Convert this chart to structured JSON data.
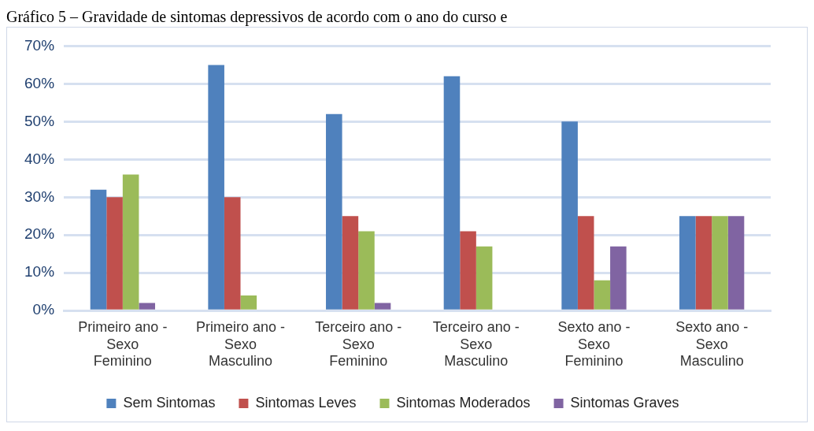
{
  "chart_data": {
    "type": "bar",
    "title": "Gráfico 5 – Gravidade de sintomas depressivos de acordo com o ano do curso e",
    "categories": [
      "Primeiro ano - Sexo Feminino",
      "Primeiro ano - Sexo Masculino",
      "Terceiro ano - Sexo Feminino",
      "Terceiro ano - Sexo Masculino",
      "Sexto ano - Sexo Feminino",
      "Sexto ano - Sexo Masculino"
    ],
    "series": [
      {
        "name": "Sem Sintomas",
        "color": "#4f81bd",
        "values": [
          32,
          65,
          52,
          62,
          50,
          25
        ]
      },
      {
        "name": "Sintomas Leves",
        "color": "#c0504d",
        "values": [
          30,
          30,
          25,
          21,
          25,
          25
        ]
      },
      {
        "name": "Sintomas Moderados",
        "color": "#9bbb59",
        "values": [
          36,
          4,
          21,
          17,
          8,
          25
        ]
      },
      {
        "name": "Sintomas Graves",
        "color": "#8064a2",
        "values": [
          2,
          0,
          2,
          0,
          17,
          25
        ]
      }
    ],
    "ylim": [
      0,
      70
    ],
    "yticks": [
      {
        "value": 0,
        "label": "0%"
      },
      {
        "value": 10,
        "label": "10%"
      },
      {
        "value": 20,
        "label": "20%"
      },
      {
        "value": 30,
        "label": "30%"
      },
      {
        "value": 40,
        "label": "40%"
      },
      {
        "value": 50,
        "label": "50%"
      },
      {
        "value": 60,
        "label": "60%"
      },
      {
        "value": 70,
        "label": "70%"
      }
    ],
    "grid": "y",
    "legend": "bottom"
  }
}
